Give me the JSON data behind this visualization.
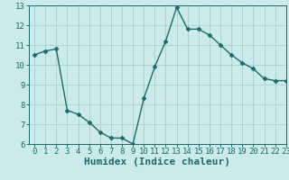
{
  "x": [
    0,
    1,
    2,
    3,
    4,
    5,
    6,
    7,
    8,
    9,
    10,
    11,
    12,
    13,
    14,
    15,
    16,
    17,
    18,
    19,
    20,
    21,
    22,
    23
  ],
  "y": [
    10.5,
    10.7,
    10.8,
    7.7,
    7.5,
    7.1,
    6.6,
    6.3,
    6.3,
    6.0,
    8.3,
    9.9,
    11.2,
    12.9,
    11.8,
    11.8,
    11.5,
    11.0,
    10.5,
    10.1,
    9.8,
    9.3,
    9.2,
    9.2
  ],
  "line_color": "#1a6b6b",
  "bg_color": "#cceaea",
  "grid_color": "#aad4d4",
  "xlabel": "Humidex (Indice chaleur)",
  "ylim": [
    6,
    13
  ],
  "xlim": [
    -0.5,
    23
  ],
  "yticks": [
    6,
    7,
    8,
    9,
    10,
    11,
    12,
    13
  ],
  "xticks": [
    0,
    1,
    2,
    3,
    4,
    5,
    6,
    7,
    8,
    9,
    10,
    11,
    12,
    13,
    14,
    15,
    16,
    17,
    18,
    19,
    20,
    21,
    22,
    23
  ],
  "marker": "D",
  "markersize": 2.5,
  "linewidth": 1.0,
  "xlabel_fontsize": 8,
  "tick_fontsize": 6.5
}
